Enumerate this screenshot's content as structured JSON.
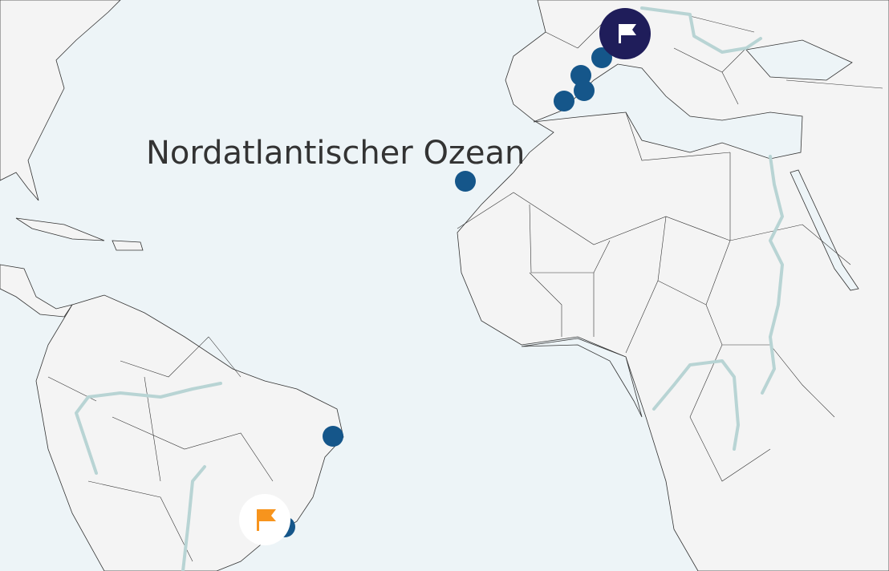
{
  "map": {
    "ocean_label": "Nordatlantischer Ozean",
    "colors": {
      "land": "#f4f4f4",
      "sea": "#edf4f7",
      "river": "#b8d4d4",
      "marker": "#15568a",
      "active_flag_bg": "#1f1d5a",
      "flag_orange": "#f7941d"
    },
    "markers": [
      {
        "name": "marker-europe-1"
      },
      {
        "name": "marker-europe-2"
      },
      {
        "name": "marker-europe-3"
      },
      {
        "name": "marker-europe-4"
      },
      {
        "name": "marker-canary"
      },
      {
        "name": "marker-brazil-northeast"
      },
      {
        "name": "marker-brazil-south"
      }
    ],
    "flags": [
      {
        "name": "flag-marker-europe",
        "icon": "flag-icon",
        "style": "filled-dark"
      },
      {
        "name": "flag-marker-brazil",
        "icon": "flag-icon",
        "style": "white-orange"
      }
    ]
  }
}
